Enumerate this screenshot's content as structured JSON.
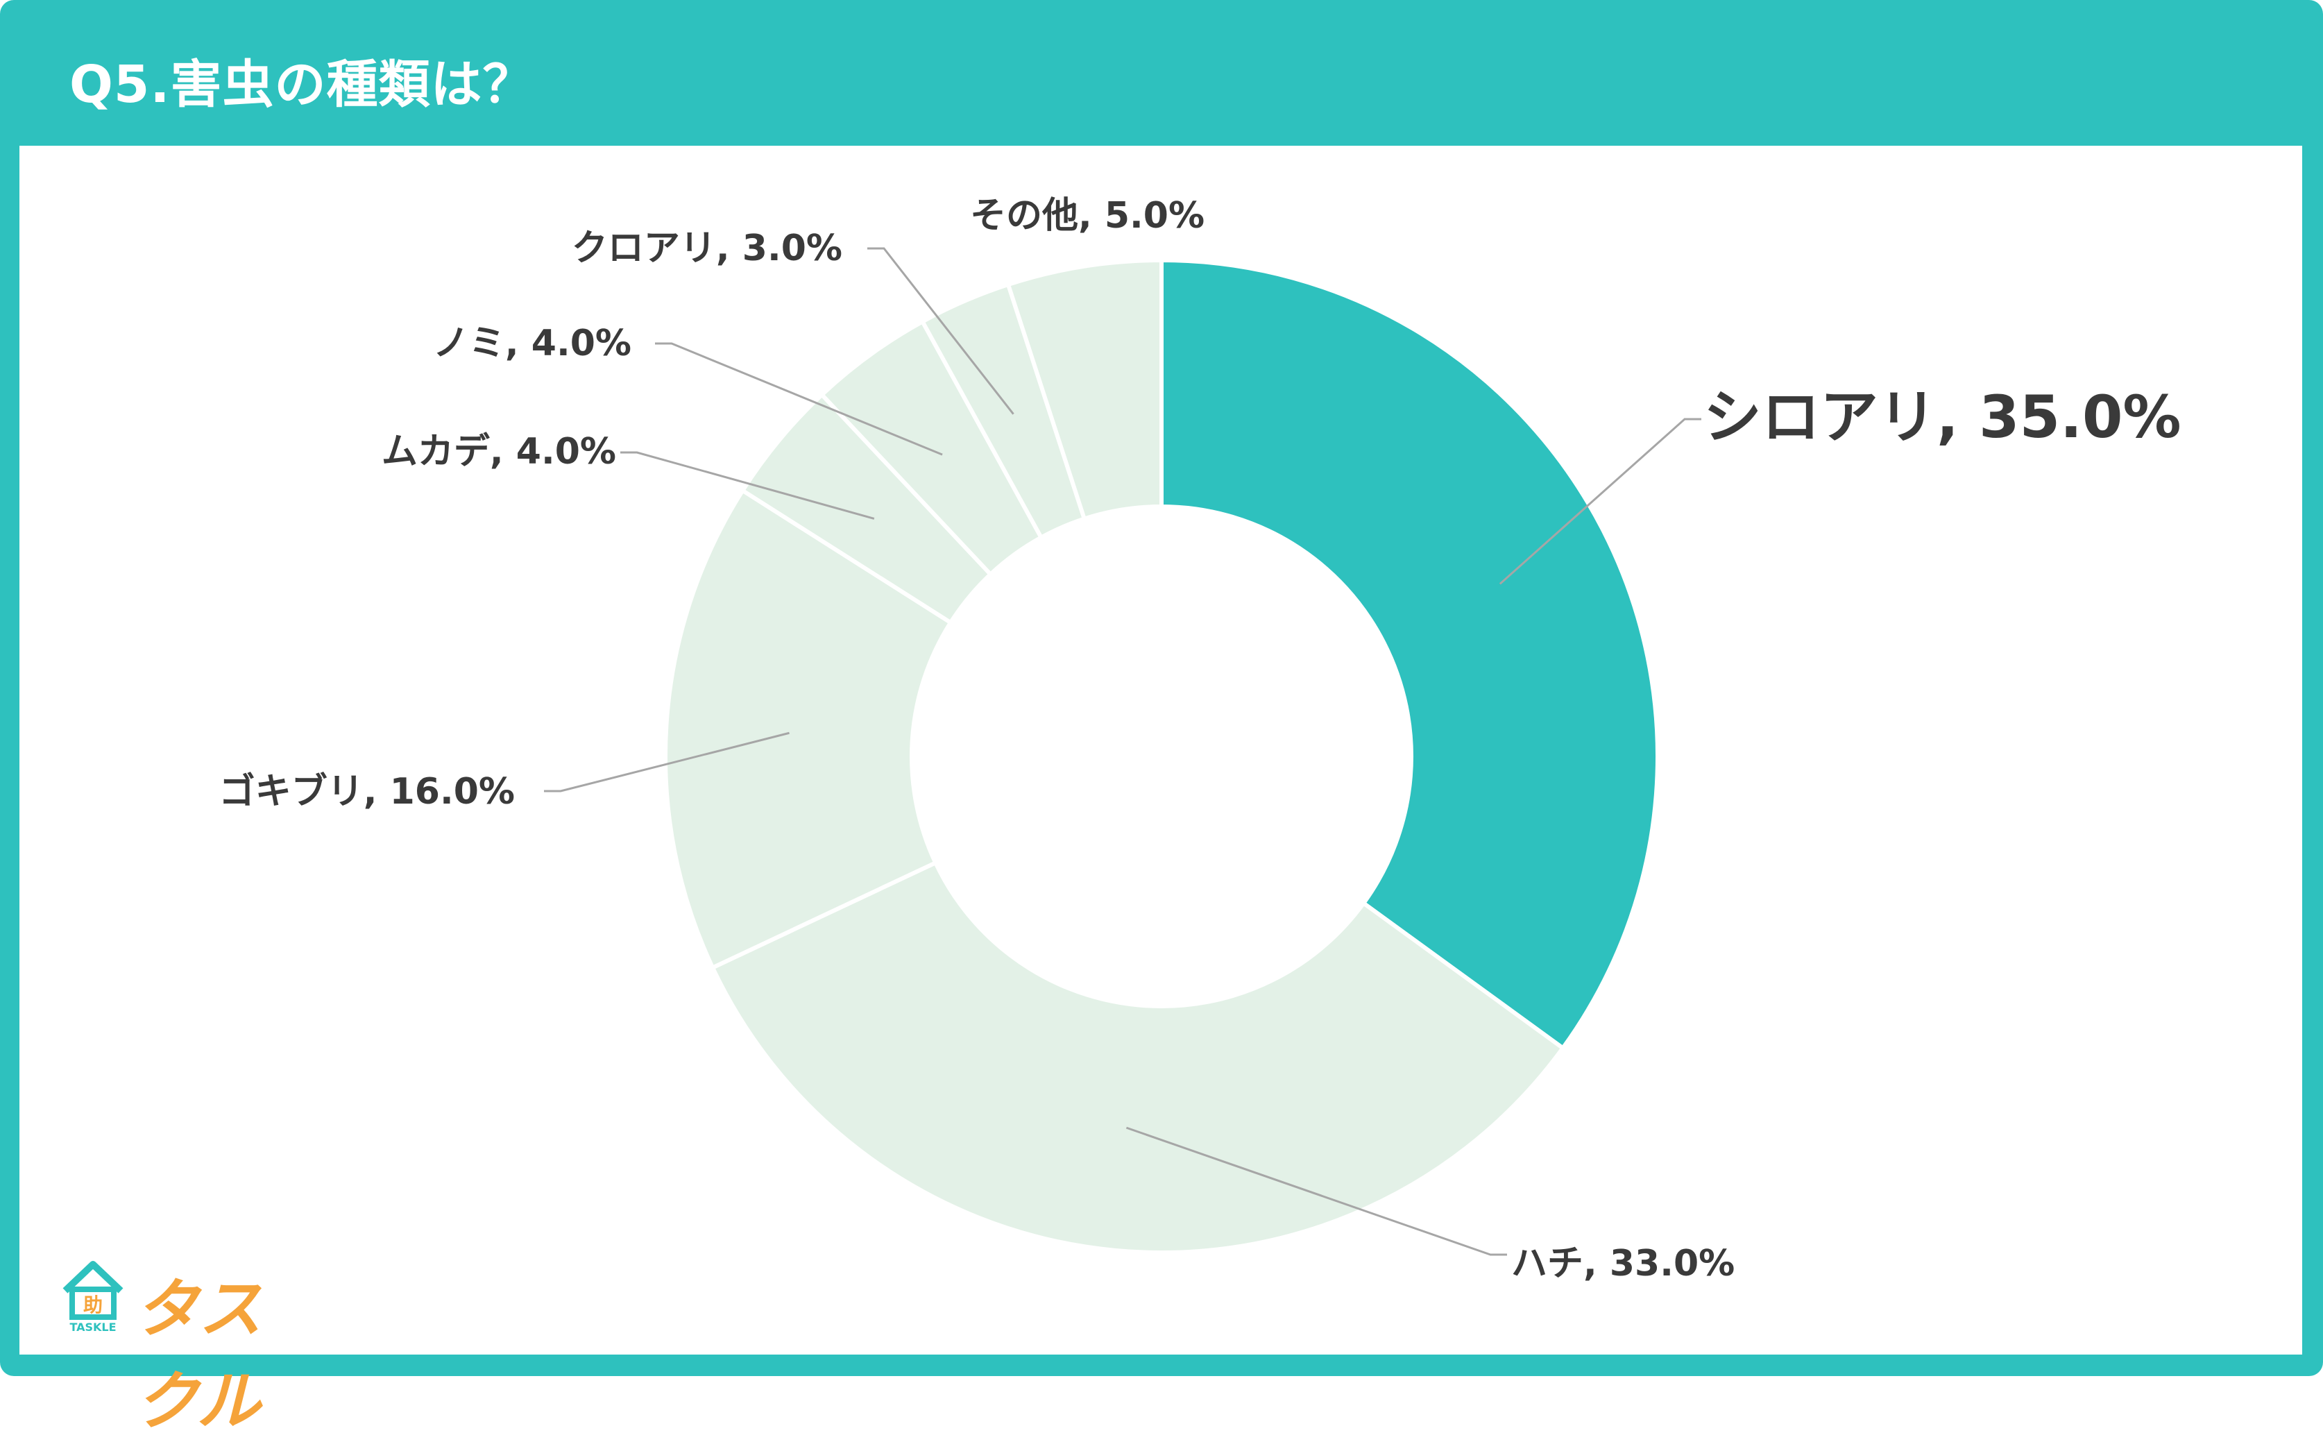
{
  "header": {
    "title": "Q5.害虫の種類は？"
  },
  "brand": {
    "name": "タスクル",
    "sub": "TASKLE",
    "mark": "助"
  },
  "colors": {
    "teal": "#2ec1be",
    "pale": "#e3f1e7",
    "text": "#3a3a3a",
    "orange": "#f5a33a"
  },
  "chart_data": {
    "type": "pie",
    "style": "donut",
    "categories": [
      "シロアリ",
      "ハチ",
      "ゴキブリ",
      "ムカデ",
      "ノミ",
      "クロアリ",
      "その他"
    ],
    "values": [
      35.0,
      33.0,
      16.0,
      4.0,
      4.0,
      3.0,
      5.0
    ],
    "labels": [
      "シロアリ, 35.0%",
      "ハチ, 33.0%",
      "ゴキブリ, 16.0%",
      "ムカデ, 4.0%",
      "ノミ, 4.0%",
      "クロアリ, 3.0%",
      "その他, 5.0%"
    ],
    "highlight": "シロアリ",
    "legend": "none"
  }
}
